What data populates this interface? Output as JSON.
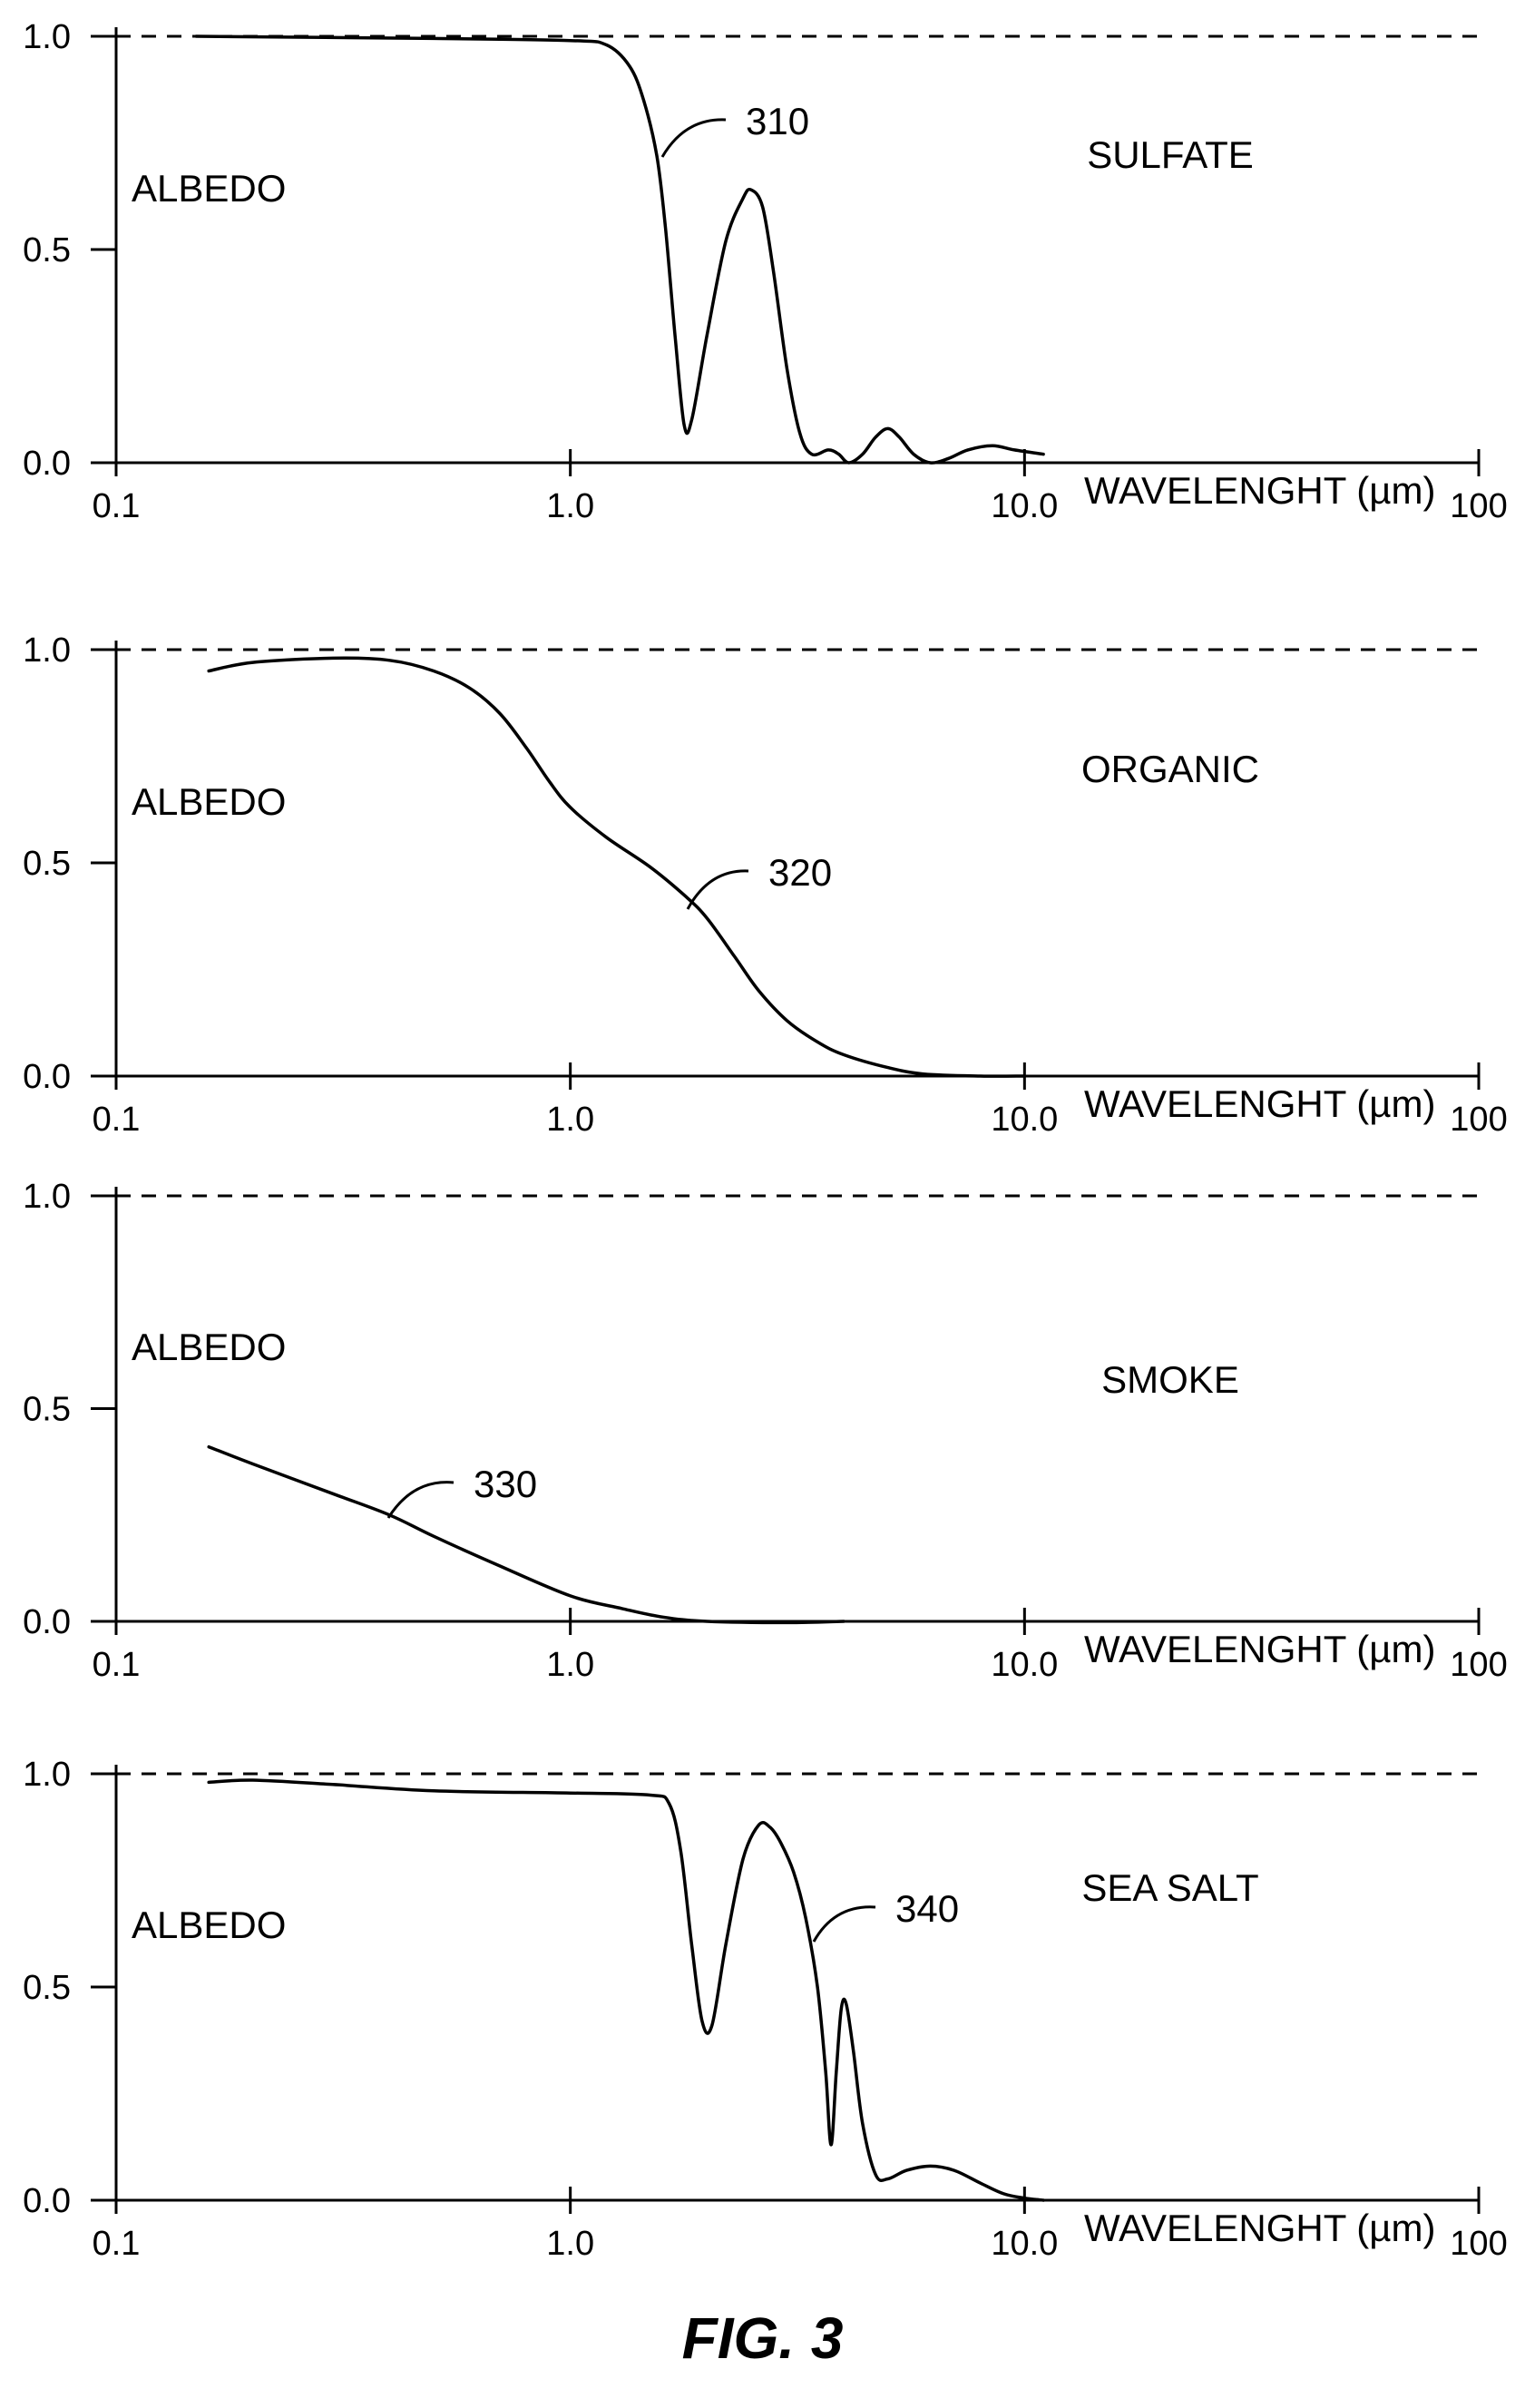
{
  "figure_caption": "FIG. 3",
  "chart_data": [
    {
      "type": "line",
      "title": "SULFATE",
      "ylabel": "ALBEDO",
      "xlabel": "WAVELENGHT (µm)",
      "xscale": "log",
      "xlim": [
        0.1,
        100
      ],
      "ylim": [
        0,
        1.0
      ],
      "x_tick_labels": [
        "0.1",
        "1.0",
        "10.0",
        "100"
      ],
      "y_tick_labels": [
        "0.0",
        "0.5",
        "1.0"
      ],
      "reference_line": {
        "y": 1.0,
        "style": "dashed"
      },
      "series": [
        {
          "ref": "310",
          "x": [
            0.15,
            0.5,
            1.0,
            1.2,
            1.35,
            1.45,
            1.55,
            1.62,
            1.7,
            1.78,
            1.85,
            2.0,
            2.2,
            2.4,
            2.5,
            2.65,
            2.8,
            3.0,
            3.2,
            3.4,
            3.7,
            3.9,
            4.1,
            4.4,
            4.7,
            5.0,
            5.3,
            5.7,
            6.2,
            6.8,
            7.5,
            8.5,
            9.5,
            11.0
          ],
          "y": [
            1.0,
            0.995,
            0.99,
            0.98,
            0.93,
            0.85,
            0.72,
            0.55,
            0.3,
            0.09,
            0.1,
            0.3,
            0.52,
            0.62,
            0.64,
            0.6,
            0.45,
            0.22,
            0.07,
            0.02,
            0.03,
            0.02,
            0.0,
            0.02,
            0.06,
            0.08,
            0.06,
            0.02,
            0.0,
            0.01,
            0.03,
            0.04,
            0.03,
            0.02
          ]
        }
      ]
    },
    {
      "type": "line",
      "title": "ORGANIC",
      "ylabel": "ALBEDO",
      "xlabel": "WAVELENGHT (µm)",
      "xscale": "log",
      "xlim": [
        0.1,
        100
      ],
      "ylim": [
        0,
        1.0
      ],
      "x_tick_labels": [
        "0.1",
        "1.0",
        "10.0",
        "100"
      ],
      "y_tick_labels": [
        "0.0",
        "0.5",
        "1.0"
      ],
      "reference_line": {
        "y": 1.0,
        "style": "dashed"
      },
      "series": [
        {
          "ref": "320",
          "x": [
            0.16,
            0.2,
            0.3,
            0.4,
            0.5,
            0.6,
            0.7,
            0.8,
            0.9,
            1.0,
            1.2,
            1.5,
            1.8,
            2.0,
            2.3,
            2.6,
            3.0,
            3.5,
            4.0,
            5.0,
            6.0,
            8.0,
            10.0
          ],
          "y": [
            0.95,
            0.97,
            0.98,
            0.975,
            0.95,
            0.91,
            0.85,
            0.77,
            0.69,
            0.63,
            0.56,
            0.49,
            0.42,
            0.37,
            0.28,
            0.2,
            0.13,
            0.08,
            0.05,
            0.02,
            0.005,
            0.0,
            0.0
          ]
        }
      ]
    },
    {
      "type": "line",
      "title": "SMOKE",
      "ylabel": "ALBEDO",
      "xlabel": "WAVELENGHT (µm)",
      "xscale": "log",
      "xlim": [
        0.1,
        100
      ],
      "ylim": [
        0,
        1.0
      ],
      "x_tick_labels": [
        "0.1",
        "1.0",
        "10.0",
        "100"
      ],
      "y_tick_labels": [
        "0.0",
        "0.5",
        "1.0"
      ],
      "reference_line": {
        "y": 1.0,
        "style": "dashed"
      },
      "series": [
        {
          "ref": "330",
          "x": [
            0.16,
            0.2,
            0.3,
            0.4,
            0.5,
            0.7,
            1.0,
            1.3,
            1.6,
            2.0,
            3.0,
            4.0
          ],
          "y": [
            0.41,
            0.37,
            0.3,
            0.25,
            0.2,
            0.13,
            0.06,
            0.03,
            0.01,
            0.0,
            -0.003,
            0.0
          ]
        }
      ]
    },
    {
      "type": "line",
      "title": "SEA SALT",
      "ylabel": "ALBEDO",
      "xlabel": "WAVELENGHT (µm)",
      "xscale": "log",
      "xlim": [
        0.1,
        100
      ],
      "ylim": [
        0,
        1.0
      ],
      "x_tick_labels": [
        "0.1",
        "1.0",
        "10.0",
        "100"
      ],
      "y_tick_labels": [
        "0.0",
        "0.5",
        "1.0"
      ],
      "reference_line": {
        "y": 1.0,
        "style": "dashed"
      },
      "series": [
        {
          "ref": "340",
          "x": [
            0.16,
            0.2,
            0.3,
            0.5,
            1.0,
            1.5,
            1.65,
            1.75,
            1.85,
            1.95,
            2.05,
            2.2,
            2.4,
            2.6,
            2.75,
            2.9,
            3.1,
            3.3,
            3.5,
            3.65,
            3.75,
            3.85,
            3.95,
            4.05,
            4.2,
            4.4,
            4.7,
            5.0,
            5.5,
            6.2,
            7.0,
            8.0,
            9.0,
            10.0,
            11.0
          ],
          "y": [
            0.98,
            0.985,
            0.975,
            0.96,
            0.955,
            0.95,
            0.93,
            0.82,
            0.6,
            0.42,
            0.41,
            0.6,
            0.8,
            0.88,
            0.875,
            0.84,
            0.77,
            0.66,
            0.5,
            0.3,
            0.13,
            0.3,
            0.45,
            0.46,
            0.35,
            0.18,
            0.06,
            0.05,
            0.07,
            0.08,
            0.07,
            0.04,
            0.015,
            0.005,
            0.0
          ]
        }
      ]
    }
  ]
}
